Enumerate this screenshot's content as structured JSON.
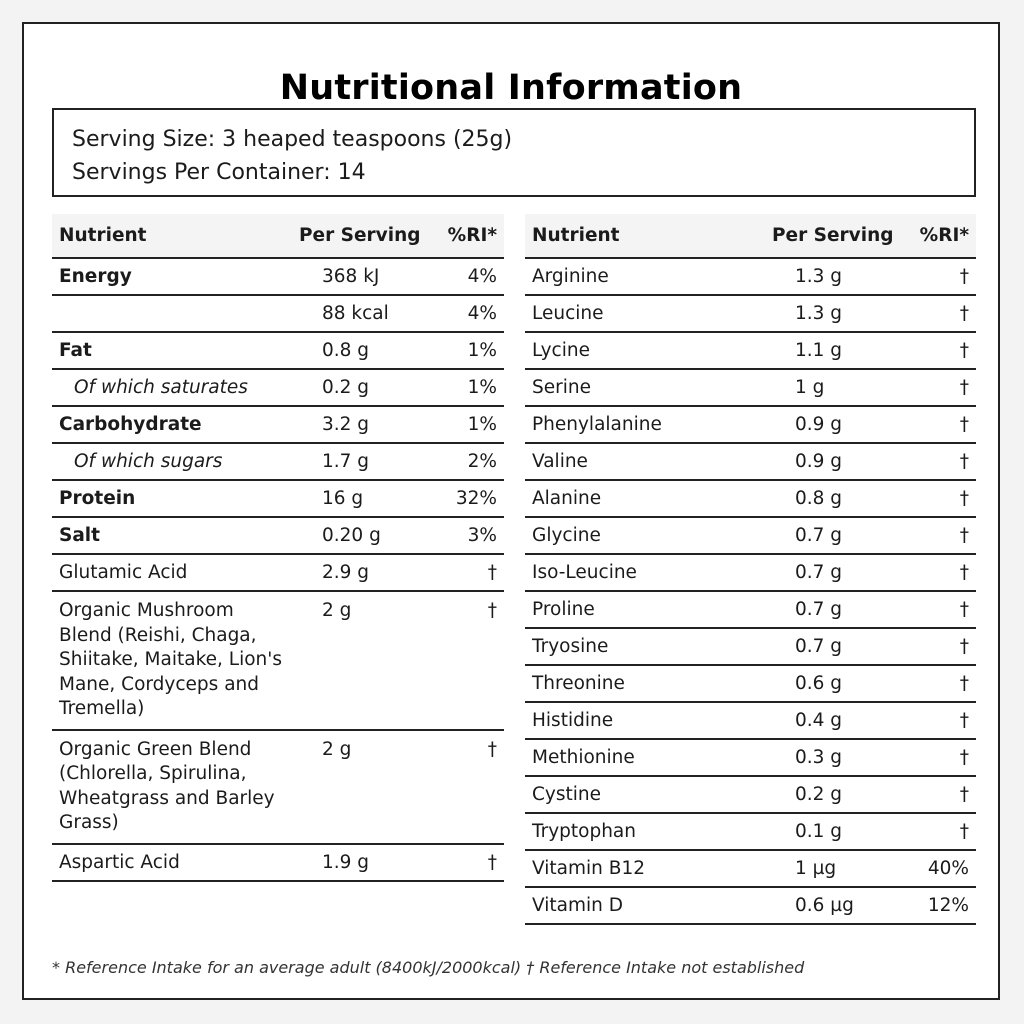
{
  "title": "Nutritional Information",
  "serving": {
    "size": "Serving Size: 3 heaped teaspoons (25g)",
    "per_container": "Servings Per Container: 14"
  },
  "headers": {
    "nutrient": "Nutrient",
    "per_serving": "Per Serving",
    "ri": "%RI*"
  },
  "left_rows": [
    {
      "name": "Energy",
      "amount": "368 kJ",
      "ri": "4%",
      "style": "bold"
    },
    {
      "name": "",
      "amount": "88 kcal",
      "ri": "4%",
      "style": "normal"
    },
    {
      "name": "Fat",
      "amount": "0.8 g",
      "ri": "1%",
      "style": "bold"
    },
    {
      "name": "Of which saturates",
      "amount": "0.2 g",
      "ri": "1%",
      "style": "sub"
    },
    {
      "name": "Carbohydrate",
      "amount": "3.2 g",
      "ri": "1%",
      "style": "bold"
    },
    {
      "name": "Of which sugars",
      "amount": "1.7 g",
      "ri": "2%",
      "style": "sub"
    },
    {
      "name": "Protein",
      "amount": "16 g",
      "ri": "32%",
      "style": "bold"
    },
    {
      "name": "Salt",
      "amount": "0.20 g",
      "ri": "3%",
      "style": "bold"
    },
    {
      "name": "Glutamic Acid",
      "amount": "2.9 g",
      "ri": "†",
      "style": "normal"
    },
    {
      "name": "Organic Mushroom Blend (Reishi, Chaga, Shiitake, Maitake, Lion's Mane, Cordyceps and Tremella)",
      "amount": "2 g",
      "ri": "†",
      "style": "multi"
    },
    {
      "name": "Organic Green Blend (Chlorella, Spirulina, Wheatgrass and Barley Grass)",
      "amount": "2 g",
      "ri": "†",
      "style": "multi"
    },
    {
      "name": "Aspartic Acid",
      "amount": "1.9 g",
      "ri": "†",
      "style": "normal"
    }
  ],
  "right_rows": [
    {
      "name": "Arginine",
      "amount": "1.3 g",
      "ri": "†"
    },
    {
      "name": "Leucine",
      "amount": "1.3 g",
      "ri": "†"
    },
    {
      "name": "Lycine",
      "amount": "1.1 g",
      "ri": "†"
    },
    {
      "name": "Serine",
      "amount": "1 g",
      "ri": "†"
    },
    {
      "name": "Phenylalanine",
      "amount": "0.9 g",
      "ri": "†"
    },
    {
      "name": "Valine",
      "amount": "0.9 g",
      "ri": "†"
    },
    {
      "name": "Alanine",
      "amount": "0.8 g",
      "ri": "†"
    },
    {
      "name": "Glycine",
      "amount": "0.7 g",
      "ri": "†"
    },
    {
      "name": "Iso-Leucine",
      "amount": "0.7 g",
      "ri": "†"
    },
    {
      "name": "Proline",
      "amount": "0.7 g",
      "ri": "†"
    },
    {
      "name": "Tryosine",
      "amount": "0.7 g",
      "ri": "†"
    },
    {
      "name": "Threonine",
      "amount": "0.6 g",
      "ri": "†"
    },
    {
      "name": "Histidine",
      "amount": "0.4 g",
      "ri": "†"
    },
    {
      "name": "Methionine",
      "amount": "0.3 g",
      "ri": "†"
    },
    {
      "name": "Cystine",
      "amount": "0.2 g",
      "ri": "†"
    },
    {
      "name": "Tryptophan",
      "amount": "0.1 g",
      "ri": "†"
    },
    {
      "name": "Vitamin B12",
      "amount": "1 µg",
      "ri": "40%"
    },
    {
      "name": "Vitamin D",
      "amount": "0.6 µg",
      "ri": "12%"
    }
  ],
  "footnote": "* Reference Intake for an average adult (8400kJ/2000kcal) † Reference Intake not established"
}
